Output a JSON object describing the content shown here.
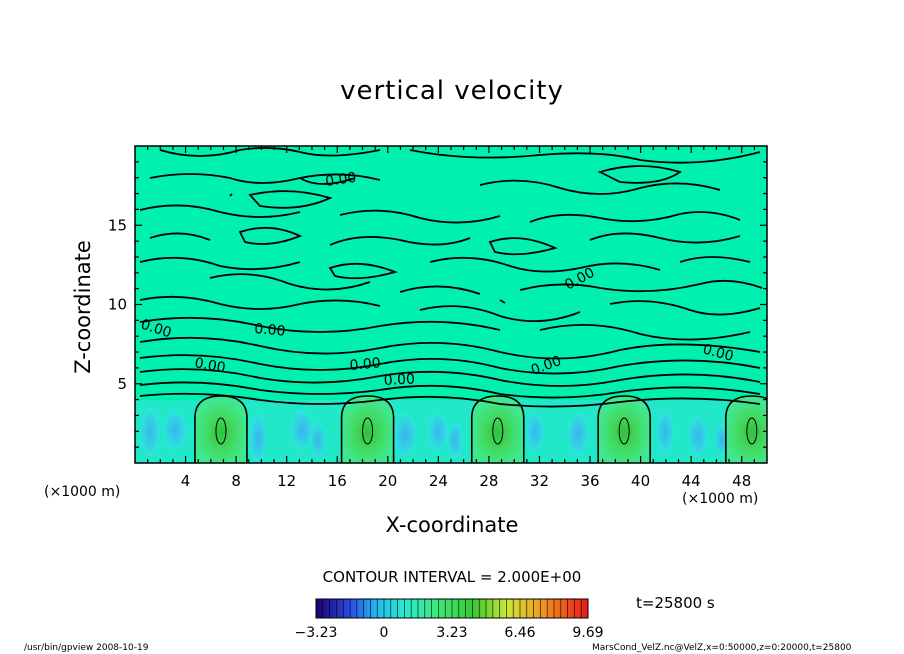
{
  "chart_data": {
    "type": "heatmap",
    "title": "vertical velocity",
    "xlabel": "X-coordinate",
    "ylabel": "Z-coordinate",
    "x_unit": "(×1000 m)",
    "xlim": [
      0,
      50
    ],
    "ylim": [
      0,
      20
    ],
    "xticks": [
      4,
      8,
      12,
      16,
      20,
      24,
      28,
      32,
      36,
      40,
      44,
      48
    ],
    "yticks": [
      5,
      10,
      15
    ],
    "contour_interval": "CONTOUR INTERVAL = 2.000E+00",
    "contour_labels": [
      "0.00",
      "0.00",
      "0.00",
      "0.00",
      "0.00",
      "0.00",
      "0.00",
      "0.00",
      "0.00"
    ],
    "updraft_centers_x": [
      6.8,
      18.4,
      28.7,
      38.7,
      48.8
    ],
    "colorbar": {
      "min": -3.23,
      "max": 9.69,
      "tick_labels": [
        "−3.23",
        "0",
        "3.23",
        "6.46",
        "9.69"
      ],
      "tick_values": [
        -3.23,
        0,
        3.23,
        6.46,
        9.69
      ]
    },
    "time_label": "t=25800 s",
    "footer_left": "/usr/bin/gpview   2008-10-19",
    "footer_right": "MarsCond_VelZ.nc@VelZ,x=0:50000,z=0:20000,t=25800"
  }
}
